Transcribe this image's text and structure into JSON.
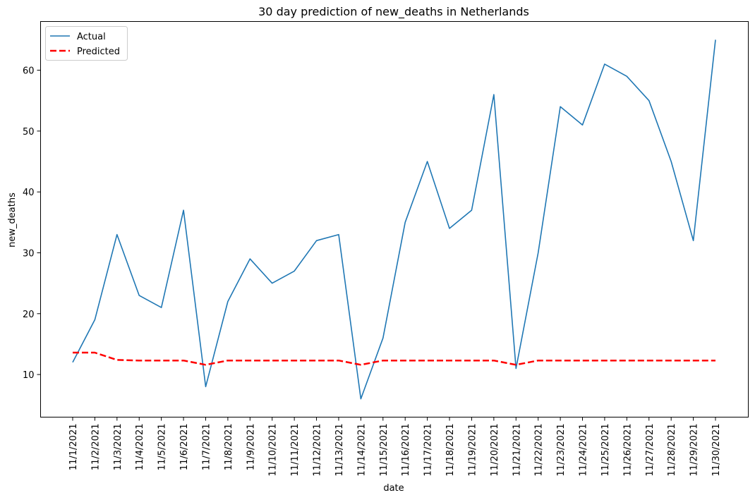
{
  "chart_data": {
    "type": "line",
    "title": "30 day prediction of new_deaths in Netherlands",
    "xlabel": "date",
    "ylabel": "new_deaths",
    "categories": [
      "11/1/2021",
      "11/2/2021",
      "11/3/2021",
      "11/4/2021",
      "11/5/2021",
      "11/6/2021",
      "11/7/2021",
      "11/8/2021",
      "11/9/2021",
      "11/10/2021",
      "11/11/2021",
      "11/12/2021",
      "11/13/2021",
      "11/14/2021",
      "11/15/2021",
      "11/16/2021",
      "11/17/2021",
      "11/18/2021",
      "11/19/2021",
      "11/20/2021",
      "11/21/2021",
      "11/22/2021",
      "11/23/2021",
      "11/24/2021",
      "11/25/2021",
      "11/26/2021",
      "11/27/2021",
      "11/28/2021",
      "11/29/2021",
      "11/30/2021"
    ],
    "yticks": [
      10,
      20,
      30,
      40,
      50,
      60
    ],
    "ylim": [
      3,
      68
    ],
    "grid": false,
    "legend_position": "top-left",
    "series": [
      {
        "name": "Actual",
        "color": "#1f77b4",
        "style": "solid",
        "values": [
          12,
          19,
          33,
          23,
          21,
          37,
          8,
          22,
          29,
          25,
          27,
          32,
          33,
          6,
          16,
          35,
          45,
          34,
          37,
          56,
          11,
          30,
          54,
          51,
          61,
          59,
          55,
          45,
          32,
          65
        ]
      },
      {
        "name": "Predicted",
        "color": "#ff0000",
        "style": "dashed",
        "values": [
          13.6,
          13.6,
          12.4,
          12.3,
          12.3,
          12.3,
          11.6,
          12.3,
          12.3,
          12.3,
          12.3,
          12.3,
          12.3,
          11.6,
          12.3,
          12.3,
          12.3,
          12.3,
          12.3,
          12.3,
          11.6,
          12.3,
          12.3,
          12.3,
          12.3,
          12.3,
          12.3,
          12.3,
          12.3,
          12.3
        ]
      }
    ]
  }
}
